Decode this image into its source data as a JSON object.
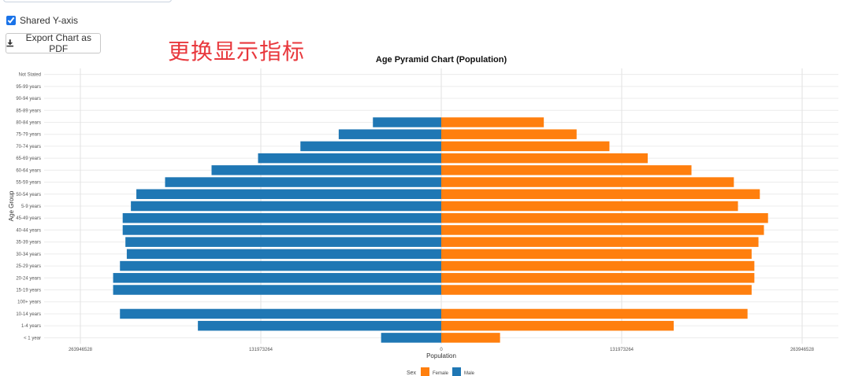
{
  "controls": {
    "shared_y_axis_label": "Shared Y-axis",
    "shared_y_axis_checked": true,
    "export_button_label": "Export Chart as PDF",
    "export_icon": "download-icon"
  },
  "annotation": "更换显示指标",
  "colors": {
    "female": "#ff7f0e",
    "male": "#1f77b4"
  },
  "chart_data": {
    "type": "bar",
    "orientation": "horizontal",
    "title": "Age Pyramid Chart (Population)",
    "xlabel": "Population",
    "ylabel": "Age Group",
    "xlim": [
      -263946528,
      263946528
    ],
    "xticks": [
      -263946528,
      -131973264,
      0,
      131973264,
      263946528
    ],
    "xtick_labels": [
      "263946528",
      "131973264",
      "0",
      "131973264",
      "263946528"
    ],
    "grid": true,
    "legend": {
      "title": "Sex",
      "placement": "bottom",
      "entries": [
        "Female",
        "Male"
      ]
    },
    "categories": [
      "Not Stated",
      "95-99 years",
      "90-94 years",
      "85-89 years",
      "80-84 years",
      "75-79 years",
      "70-74 years",
      "65-69 years",
      "60-64 years",
      "55-59 years",
      "50-54 years",
      "5-9 years",
      "45-49 years",
      "40-44 years",
      "35-39 years",
      "30-34 years",
      "25-29 years",
      "20-24 years",
      "15-19 years",
      "100+ years",
      "10-14 years",
      "1-4 years",
      "< 1 year"
    ],
    "series": [
      {
        "name": "Female",
        "values": [
          0,
          0,
          0,
          0,
          75000000,
          99000000,
          123000000,
          151000000,
          183000000,
          214000000,
          233000000,
          217000000,
          239000000,
          236000000,
          232000000,
          227000000,
          229000000,
          229000000,
          227000000,
          0,
          224000000,
          170000000,
          43000000
        ]
      },
      {
        "name": "Male",
        "values": [
          0,
          0,
          0,
          0,
          50000000,
          75000000,
          103000000,
          134000000,
          168000000,
          202000000,
          223000000,
          227000000,
          233000000,
          233000000,
          231000000,
          230000000,
          235000000,
          240000000,
          240000000,
          0,
          235000000,
          178000000,
          44000000
        ]
      }
    ]
  }
}
